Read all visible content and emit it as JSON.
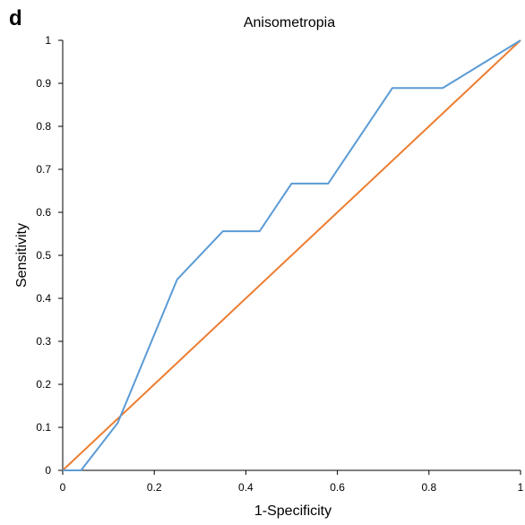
{
  "chart_data": {
    "type": "line",
    "panel_label": "d",
    "title": "Anisometropia",
    "xlabel": "1-Specificity",
    "ylabel": "Sensitivity",
    "xlim": [
      0,
      1
    ],
    "ylim": [
      0,
      1
    ],
    "x_ticks": [
      "0",
      "0.2",
      "0.4",
      "0.6",
      "0.8",
      "1"
    ],
    "y_ticks": [
      "0",
      "0.1",
      "0.2",
      "0.3",
      "0.4",
      "0.5",
      "0.6",
      "0.7",
      "0.8",
      "0.9",
      "1"
    ],
    "grid": false,
    "legend": "none",
    "series": [
      {
        "color": "#5B9BD5",
        "x": [
          0,
          0.04,
          0.12,
          0.25,
          0.35,
          0.43,
          0.5,
          0.58,
          0.72,
          0.83,
          1.0
        ],
        "y": [
          0,
          0,
          0.11,
          0.444,
          0.556,
          0.556,
          0.667,
          0.667,
          0.889,
          0.889,
          1.0
        ]
      },
      {
        "color": "#ED7D31",
        "x": [
          0,
          1
        ],
        "y": [
          0,
          1
        ]
      }
    ]
  }
}
